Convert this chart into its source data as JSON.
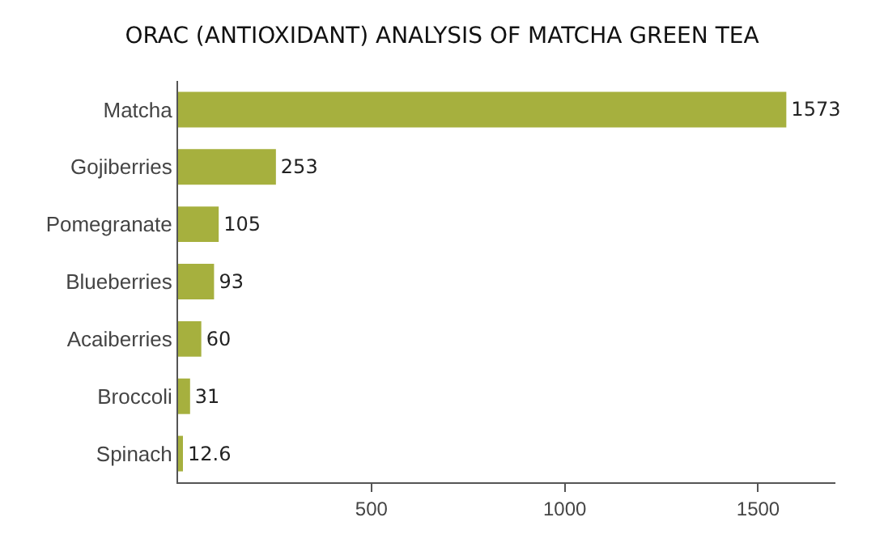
{
  "chart_data": {
    "type": "bar",
    "orientation": "horizontal",
    "title": "ORAC (ANTIOXIDANT) ANALYSIS OF MATCHA GREEN TEA",
    "categories": [
      "Matcha",
      "Gojiberries",
      "Pomegranate",
      "Blueberries",
      "Acaiberries",
      "Broccoli",
      "Spinach"
    ],
    "values": [
      1573,
      253,
      105,
      93,
      60,
      31,
      12.6
    ],
    "color": "#a6b03e",
    "data_labels": true,
    "xlim": [
      0,
      1700
    ],
    "xticks": [
      500,
      1000,
      1500
    ],
    "grid": false
  }
}
